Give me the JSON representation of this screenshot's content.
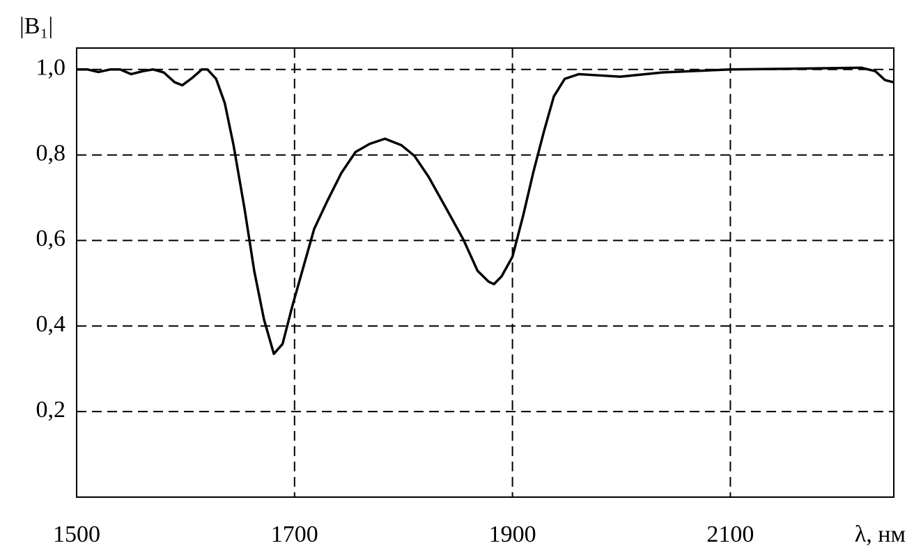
{
  "chart_data": {
    "type": "line",
    "y_label": "|B₁|",
    "x_label": "λ, нм",
    "x": [
      1500,
      1510,
      1520,
      1531,
      1540,
      1550,
      1561,
      1570,
      1580,
      1590,
      1597,
      1606,
      1615,
      1620,
      1628,
      1636,
      1644,
      1654,
      1663,
      1672,
      1681,
      1689,
      1698,
      1708,
      1718,
      1730,
      1743,
      1756,
      1769,
      1783,
      1798,
      1810,
      1823,
      1839,
      1855,
      1868,
      1878,
      1883,
      1890,
      1900,
      1910,
      1919,
      1929,
      1938,
      1948,
      1961,
      1980,
      1999,
      2038,
      2100,
      2166,
      2220,
      2233,
      2242,
      2250
    ],
    "series": [
      {
        "color": "#000000",
        "values": [
          1.0,
          1.0,
          0.994,
          1.0,
          1.0,
          0.989,
          0.996,
          1.0,
          0.993,
          0.97,
          0.963,
          0.98,
          1.0,
          1.0,
          0.978,
          0.921,
          0.823,
          0.676,
          0.529,
          0.415,
          0.335,
          0.358,
          0.447,
          0.537,
          0.627,
          0.692,
          0.758,
          0.807,
          0.826,
          0.838,
          0.823,
          0.798,
          0.749,
          0.676,
          0.602,
          0.529,
          0.504,
          0.498,
          0.516,
          0.562,
          0.66,
          0.758,
          0.856,
          0.937,
          0.978,
          0.989,
          0.986,
          0.983,
          0.993,
          1.0,
          1.002,
          1.004,
          0.996,
          0.975,
          0.97
        ]
      }
    ],
    "xlim": [
      1500,
      2250
    ],
    "ylim": [
      0,
      1.05
    ],
    "xticks": [
      1500,
      1700,
      1900,
      2100
    ],
    "yticks": [
      {
        "value": 0.2,
        "label": "0,2"
      },
      {
        "value": 0.4,
        "label": "0,4"
      },
      {
        "value": 0.6,
        "label": "0,6"
      },
      {
        "value": 0.8,
        "label": "0,8"
      },
      {
        "value": 1.0,
        "label": "1,0"
      }
    ],
    "grid": true
  }
}
